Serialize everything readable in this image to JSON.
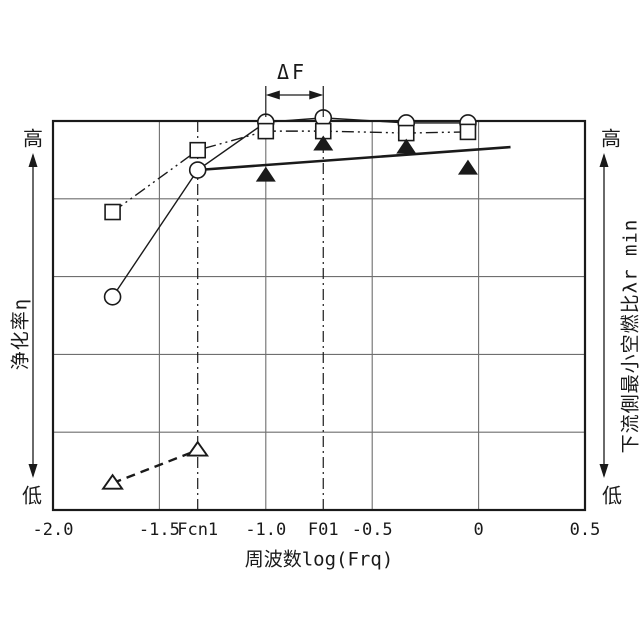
{
  "figure": {
    "background": "#ffffff",
    "ink_color": "#1a1a1a",
    "grid_color": "#6f6f6f"
  },
  "chart_data": {
    "type": "line",
    "title": "",
    "x_axis": {
      "label": "周波数log(Frq)",
      "range": [
        -2.0,
        0.5
      ],
      "ticks": [
        {
          "value": -2.0,
          "label": "-2.0"
        },
        {
          "value": -1.5,
          "label": "-1.5"
        },
        {
          "value": -1.0,
          "label": "-1.0"
        },
        {
          "value": -0.5,
          "label": "-0.5"
        },
        {
          "value": 0.0,
          "label": "0"
        },
        {
          "value": 0.5,
          "label": "0.5"
        }
      ],
      "special_lines": [
        {
          "value": -1.32,
          "label": "Fcn1",
          "style": "dash-dot-vertical"
        },
        {
          "value": -0.73,
          "label": "F01",
          "style": "dash-dot-vertical"
        }
      ],
      "grid": true
    },
    "y_axis_left": {
      "label": "浄化率η",
      "high": "高",
      "low": "低",
      "scale": "qualitative",
      "range": [
        0,
        1
      ],
      "divisions": 5,
      "grid": true
    },
    "y_axis_right": {
      "label": "下流側最小空燃比λr_min",
      "high": "高",
      "low": "低",
      "scale": "qualitative"
    },
    "series": [
      {
        "name": "purification-rate-circles",
        "marker": "circle-open",
        "line": "solid",
        "points": [
          [
            -1.72,
            0.548
          ],
          [
            -1.32,
            0.874
          ],
          [
            -1.0,
            0.997
          ],
          [
            -0.73,
            1.008
          ],
          [
            -0.34,
            0.995
          ],
          [
            -0.05,
            0.995
          ]
        ]
      },
      {
        "name": "purification-rate-squares",
        "marker": "square-open",
        "line": "dash-dot-dot",
        "points": [
          [
            -1.72,
            0.766
          ],
          [
            -1.32,
            0.925
          ],
          [
            -1.0,
            0.974
          ],
          [
            -0.73,
            0.974
          ],
          [
            -0.34,
            0.969
          ],
          [
            -0.05,
            0.972
          ]
        ]
      },
      {
        "name": "lambda-min-filled-triangles",
        "marker": "triangle-filled",
        "line": "none",
        "points": [
          [
            -1.0,
            0.861
          ],
          [
            -0.73,
            0.941
          ],
          [
            -0.34,
            0.933
          ],
          [
            -0.05,
            0.879
          ]
        ]
      },
      {
        "name": "lambda-min-trend-line",
        "marker": "none",
        "line": "solid-thick",
        "points": [
          [
            -1.32,
            0.874
          ],
          [
            0.15,
            0.933
          ]
        ]
      },
      {
        "name": "open-triangles-dashed",
        "marker": "triangle-open",
        "line": "dashed",
        "points": [
          [
            -1.72,
            0.069
          ],
          [
            -1.32,
            0.154
          ]
        ]
      }
    ],
    "annotations": [
      {
        "type": "range-arrow",
        "label": "ΔF",
        "x1": -1.0,
        "x2": -0.73
      }
    ],
    "legend": "none"
  }
}
